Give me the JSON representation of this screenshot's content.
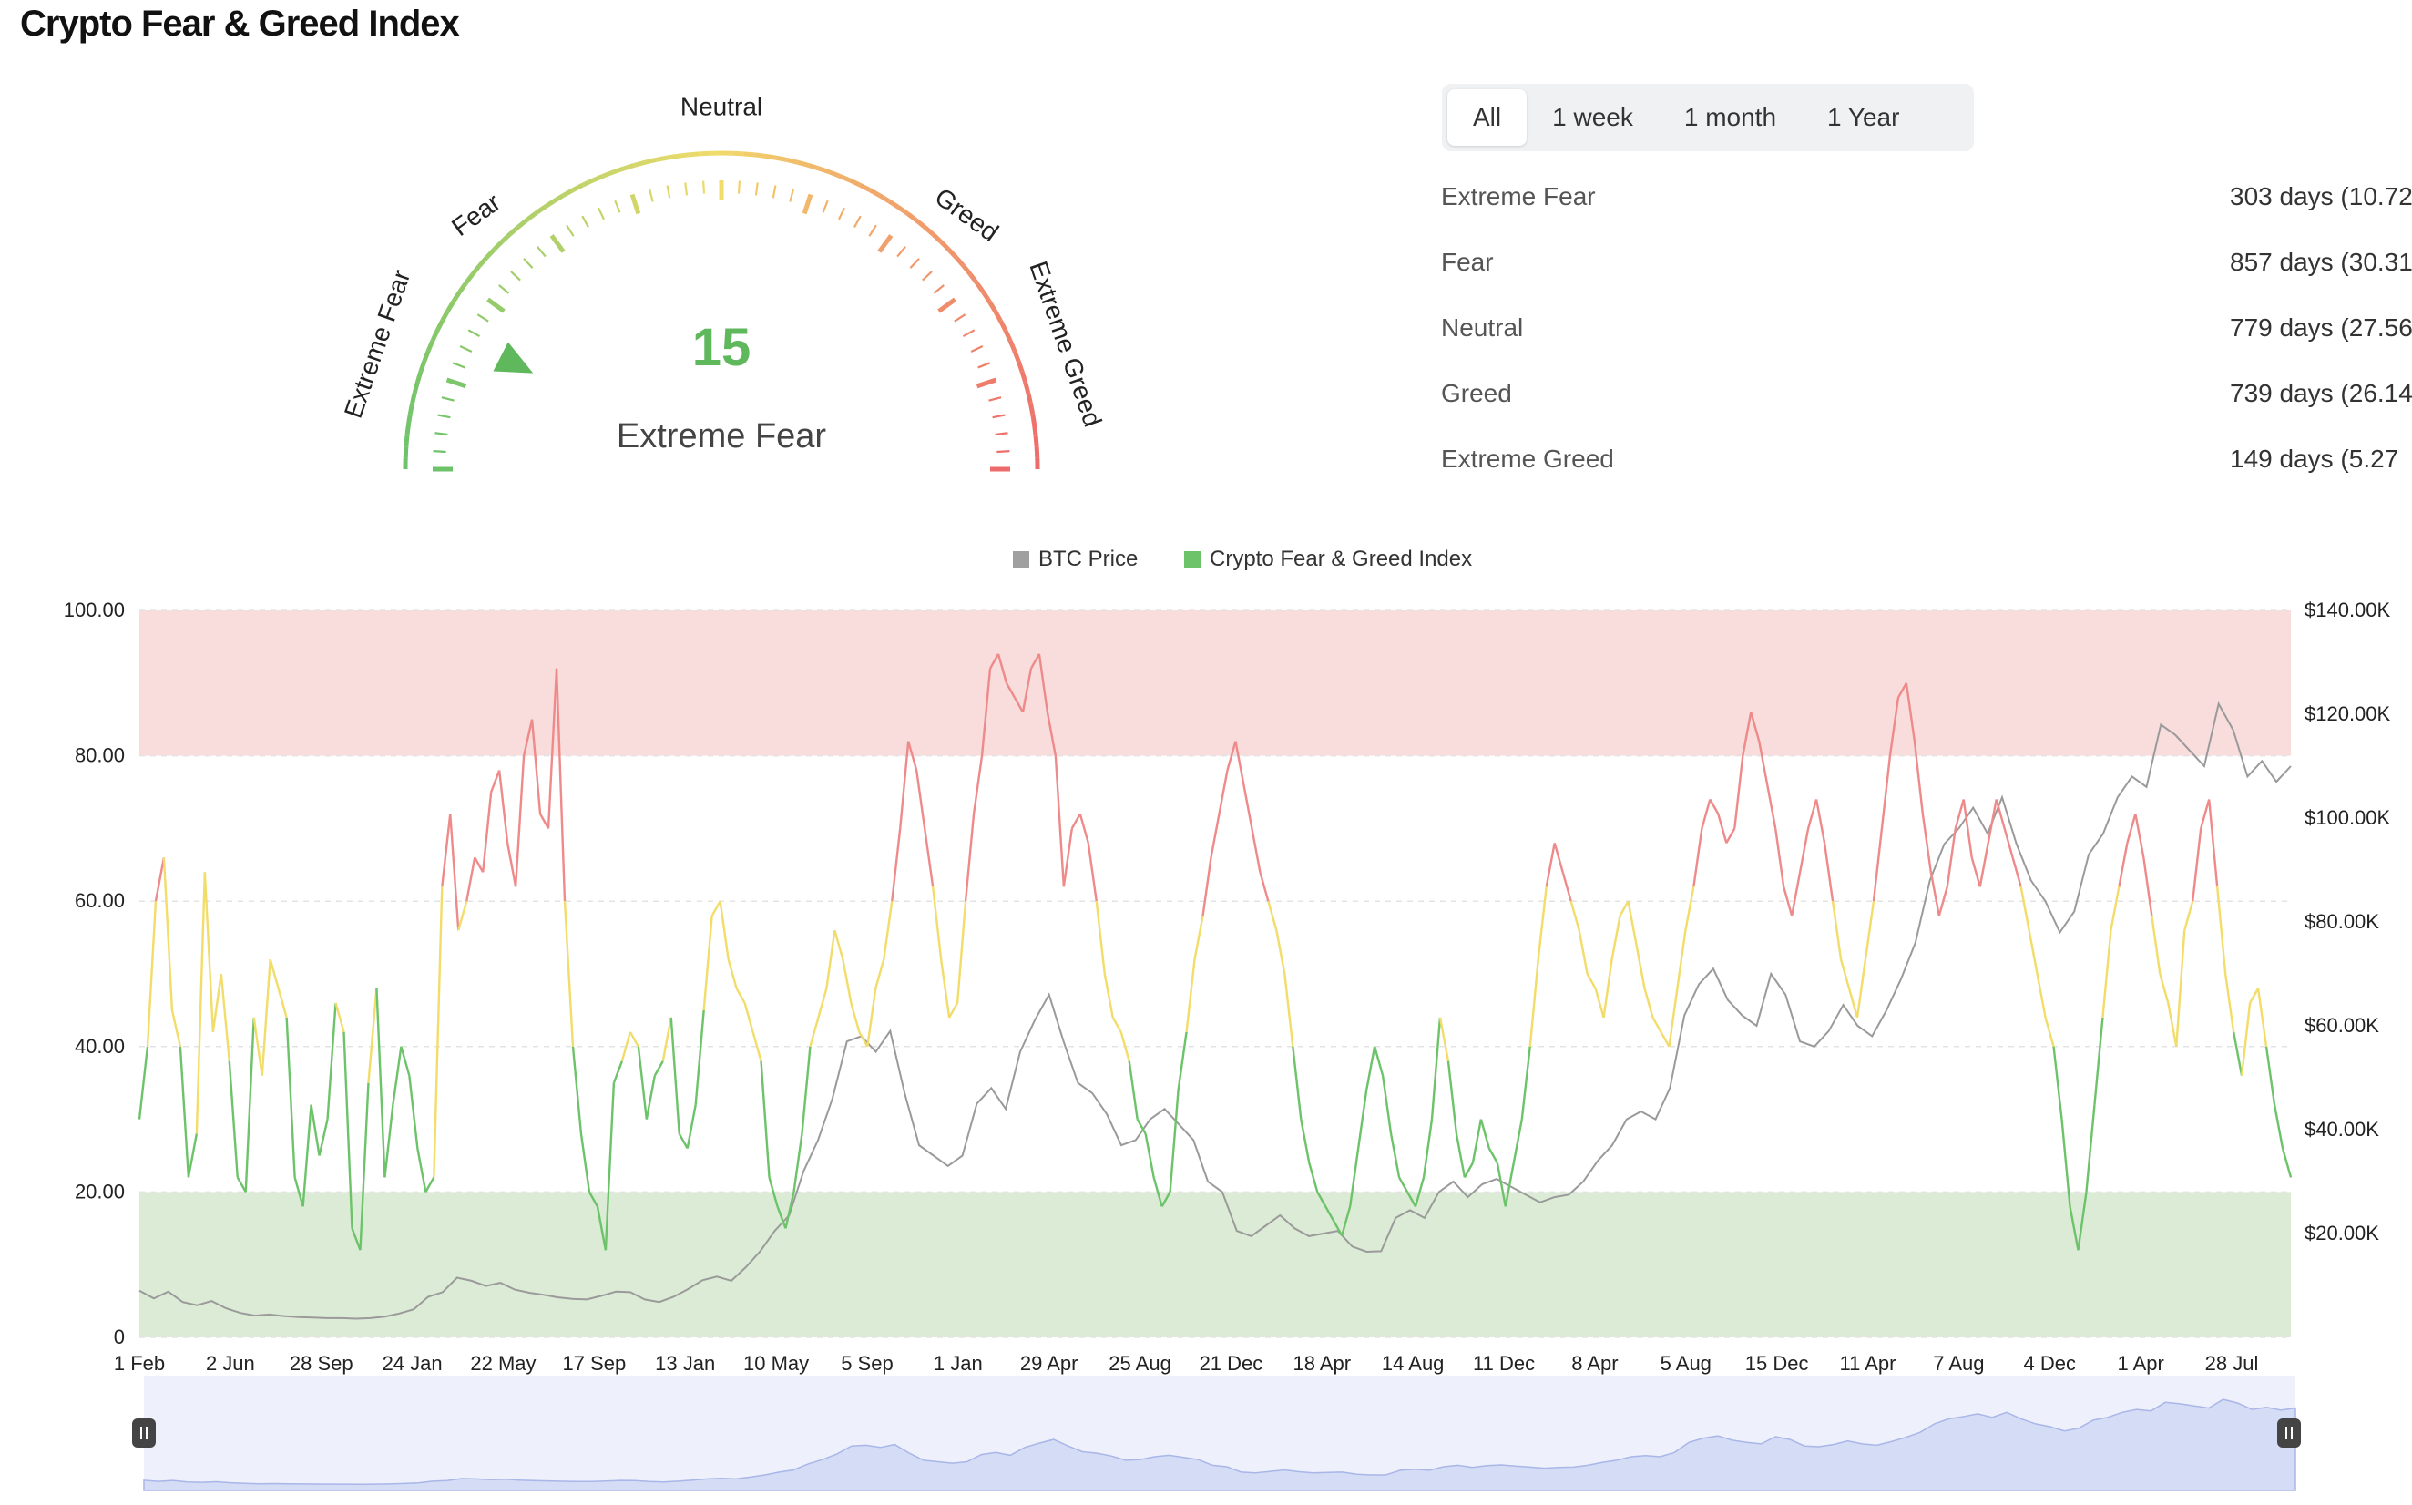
{
  "page": {
    "title": "Crypto Fear & Greed Index"
  },
  "gauge": {
    "value": "15",
    "value_num": 15,
    "status": "Extreme Fear",
    "zone_labels": [
      "Extreme Fear",
      "Fear",
      "Neutral",
      "Greed",
      "Extreme Greed"
    ],
    "colors": {
      "fear": "#6cc36a",
      "neutral": "#f2dc6a",
      "greed": "#ee6b6b",
      "value": "#5fb85c"
    }
  },
  "range_tabs": [
    {
      "label": "All",
      "active": true
    },
    {
      "label": "1 week",
      "active": false
    },
    {
      "label": "1 month",
      "active": false
    },
    {
      "label": "1 Year",
      "active": false
    }
  ],
  "stats": [
    {
      "label": "Extreme Fear",
      "value": "303 days (10.72"
    },
    {
      "label": "Fear",
      "value": "857 days (30.31"
    },
    {
      "label": "Neutral",
      "value": "779 days (27.56"
    },
    {
      "label": "Greed",
      "value": "739 days (26.14"
    },
    {
      "label": "Extreme Greed",
      "value": "149 days (5.27"
    }
  ],
  "chart_data": {
    "type": "line",
    "legend": [
      {
        "name": "BTC Price",
        "color": "#a0a0a0"
      },
      {
        "name": "Crypto Fear & Greed Index",
        "color": "#6cc36a"
      }
    ],
    "legend_placement": "top-center",
    "grid": true,
    "y_left": {
      "ticks": [
        "0",
        "20.00",
        "40.00",
        "60.00",
        "80.00",
        "100.00"
      ],
      "range": [
        0,
        100
      ]
    },
    "y_right": {
      "ticks": [
        "$20.00K",
        "$40.00K",
        "$60.00K",
        "$80.00K",
        "$100.00K",
        "$120.00K",
        "$140.00K"
      ],
      "range": [
        0,
        140000
      ]
    },
    "x_ticks": [
      "1 Feb",
      "2 Jun",
      "28 Sep",
      "24 Jan",
      "22 May",
      "17 Sep",
      "13 Jan",
      "10 May",
      "5 Sep",
      "1 Jan",
      "29 Apr",
      "25 Aug",
      "21 Dec",
      "18 Apr",
      "14 Aug",
      "11 Dec",
      "8 Apr",
      "5 Aug",
      "15 Dec",
      "11 Apr",
      "7 Aug",
      "4 Dec",
      "1 Apr",
      "28 Jul"
    ],
    "zones": [
      {
        "from": 0,
        "to": 20,
        "color": "#dcebd6"
      },
      {
        "from": 80,
        "to": 100,
        "color": "#f9dcdc"
      }
    ],
    "index_colors": {
      "fear": "#6cc36a",
      "neutral": "#f2dc6a",
      "greed": "#ee8a8a"
    },
    "fear_greed": [
      30,
      40,
      60,
      66,
      45,
      40,
      22,
      28,
      64,
      42,
      50,
      38,
      22,
      20,
      44,
      36,
      52,
      48,
      44,
      22,
      18,
      32,
      25,
      30,
      46,
      42,
      15,
      12,
      35,
      48,
      22,
      32,
      40,
      36,
      26,
      20,
      22,
      62,
      72,
      56,
      60,
      66,
      64,
      75,
      78,
      68,
      62,
      80,
      85,
      72,
      70,
      92,
      60,
      40,
      28,
      20,
      18,
      12,
      35,
      38,
      42,
      40,
      30,
      36,
      38,
      44,
      28,
      26,
      32,
      45,
      58,
      60,
      52,
      48,
      46,
      42,
      38,
      22,
      18,
      15,
      20,
      28,
      40,
      44,
      48,
      56,
      52,
      46,
      42,
      40,
      48,
      52,
      60,
      70,
      82,
      78,
      70,
      62,
      52,
      44,
      46,
      60,
      72,
      80,
      92,
      94,
      90,
      88,
      86,
      92,
      94,
      86,
      80,
      62,
      70,
      72,
      68,
      60,
      50,
      44,
      42,
      38,
      30,
      28,
      22,
      18,
      20,
      34,
      42,
      52,
      58,
      66,
      72,
      78,
      82,
      76,
      70,
      64,
      60,
      56,
      50,
      40,
      30,
      24,
      20,
      18,
      16,
      14,
      18,
      26,
      34,
      40,
      36,
      28,
      22,
      20,
      18,
      22,
      30,
      44,
      38,
      28,
      22,
      24,
      30,
      26,
      24,
      18,
      24,
      30,
      40,
      52,
      62,
      68,
      64,
      60,
      56,
      50,
      48,
      44,
      52,
      58,
      60,
      54,
      48,
      44,
      42,
      40,
      48,
      56,
      62,
      70,
      74,
      72,
      68,
      70,
      80,
      86,
      82,
      76,
      70,
      62,
      58,
      64,
      70,
      74,
      68,
      60,
      52,
      48,
      44,
      52,
      60,
      70,
      80,
      88,
      90,
      82,
      72,
      64,
      58,
      62,
      70,
      74,
      66,
      62,
      68,
      74,
      70,
      66,
      62,
      56,
      50,
      44,
      40,
      30,
      18,
      12,
      20,
      32,
      44,
      56,
      62,
      68,
      72,
      66,
      58,
      50,
      46,
      40,
      56,
      60,
      70,
      74,
      62,
      50,
      42,
      36,
      46,
      48,
      40,
      32,
      26,
      22
    ],
    "btc_price": [
      9000,
      7500,
      8800,
      6800,
      6200,
      7000,
      5600,
      4700,
      4200,
      4400,
      4100,
      3900,
      3800,
      3700,
      3700,
      3600,
      3700,
      4000,
      4600,
      5400,
      7800,
      8700,
      11500,
      10900,
      9900,
      10500,
      9200,
      8600,
      8200,
      7700,
      7400,
      7300,
      8000,
      8800,
      8700,
      7300,
      6800,
      7800,
      9300,
      11000,
      11700,
      10900,
      13500,
      16600,
      20500,
      23500,
      32000,
      38000,
      46000,
      57000,
      58000,
      55000,
      59000,
      47000,
      37000,
      35000,
      33000,
      35000,
      45000,
      48000,
      44000,
      55000,
      61000,
      66000,
      57000,
      49000,
      47000,
      43000,
      37000,
      38000,
      42000,
      44000,
      41000,
      38000,
      30000,
      28000,
      20500,
      19500,
      21500,
      23500,
      21000,
      19500,
      20000,
      20500,
      17500,
      16500,
      16600,
      23000,
      24500,
      23000,
      28000,
      30000,
      27000,
      29500,
      30500,
      29000,
      27500,
      26000,
      27000,
      27500,
      30000,
      34000,
      37000,
      42000,
      43500,
      42000,
      48000,
      62000,
      68000,
      71000,
      65000,
      62000,
      60000,
      70000,
      66000,
      57000,
      56000,
      59000,
      64000,
      60000,
      58000,
      63000,
      69000,
      76000,
      88000,
      95000,
      98000,
      102000,
      97000,
      104000,
      95000,
      88000,
      84000,
      78000,
      82000,
      93000,
      97000,
      104000,
      108000,
      106000,
      118000,
      116000,
      113000,
      110000,
      122000,
      117000,
      108000,
      111000,
      107000,
      110000
    ]
  }
}
